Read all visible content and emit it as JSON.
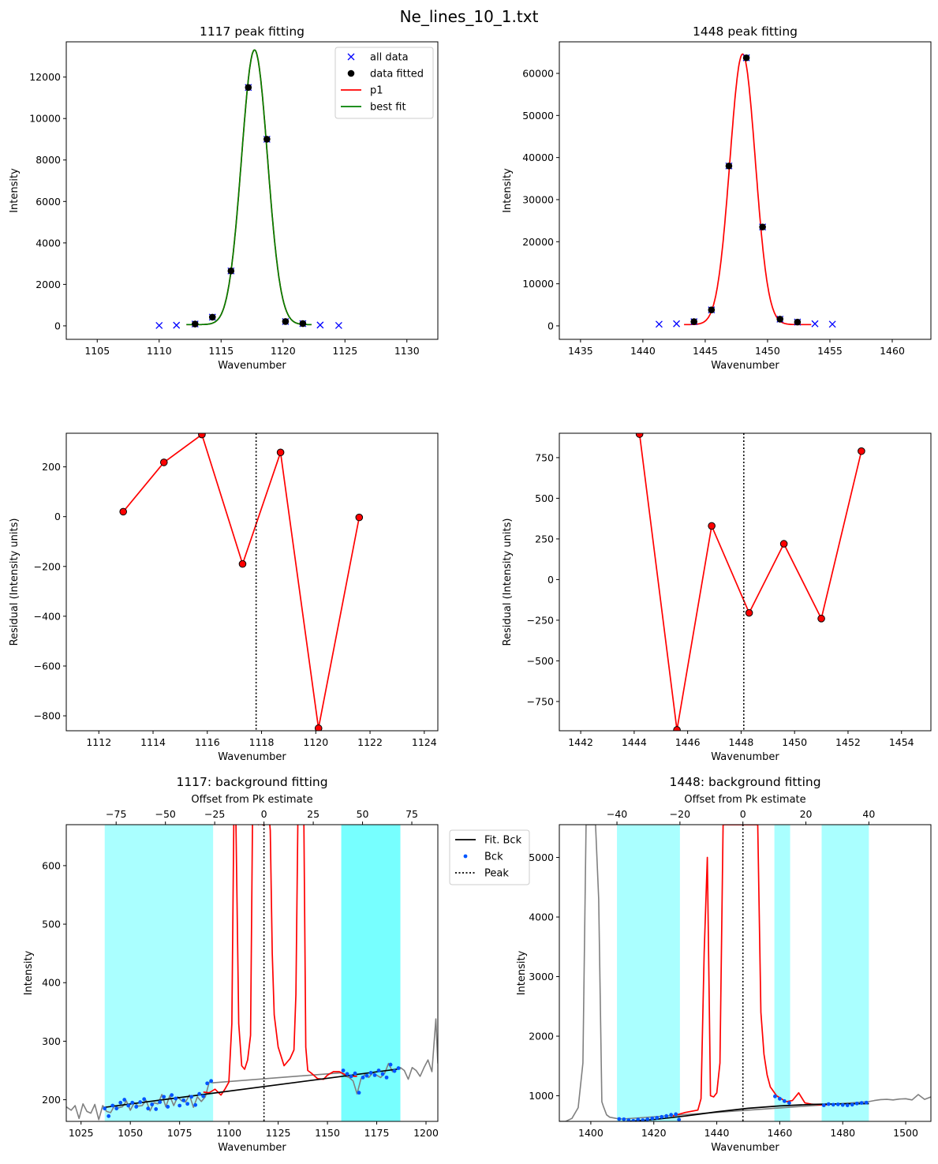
{
  "figure": {
    "title": "Ne_lines_10_1.txt",
    "colors": {
      "peak_red": "#ff0000",
      "fit_green": "#008000",
      "all_data_blue": "#0000ff",
      "bck_blue": "#0055ff",
      "bck_region": "#aaffff",
      "bck_region_strong": "#77ffff",
      "raw_gray": "#808080"
    }
  },
  "chart_data": [
    {
      "id": "p1117",
      "type": "scatter",
      "title": "1117 peak fitting",
      "xlabel": "Wavenumber",
      "ylabel": "Intensity",
      "xlim": [
        1102.5,
        1132.5
      ],
      "ylim": [
        -650,
        13700
      ],
      "xticks": [
        1105,
        1110,
        1115,
        1120,
        1125,
        1130
      ],
      "yticks": [
        0,
        2000,
        4000,
        6000,
        8000,
        10000,
        12000
      ],
      "legend": {
        "position": "top-right",
        "entries": [
          {
            "label": "all data",
            "kind": "x",
            "color": "#0000ff"
          },
          {
            "label": "data fitted",
            "kind": "dot",
            "color": "#000000"
          },
          {
            "label": "p1",
            "kind": "line",
            "color": "#ff0000"
          },
          {
            "label": "best fit",
            "kind": "line",
            "color": "#008000"
          }
        ]
      },
      "series": [
        {
          "name": "all data",
          "kind": "x",
          "color": "#0000ff",
          "x": [
            1110.0,
            1111.4,
            1112.9,
            1114.3,
            1115.8,
            1117.2,
            1118.7,
            1120.2,
            1121.6,
            1123.0,
            1124.5
          ],
          "y": [
            20,
            30,
            90,
            420,
            2650,
            11500,
            9000,
            210,
            110,
            40,
            20
          ]
        },
        {
          "name": "data fitted",
          "kind": "dot",
          "color": "#000000",
          "x": [
            1112.9,
            1114.3,
            1115.8,
            1117.2,
            1118.7,
            1120.2,
            1121.6
          ],
          "y": [
            90,
            420,
            2650,
            11500,
            9000,
            210,
            110
          ]
        }
      ],
      "curves": [
        {
          "name": "p1",
          "color": "#ff0000",
          "amp": 13250,
          "center": 1117.7,
          "sigma": 1.05,
          "base": 60,
          "x_from": 1112.2,
          "x_to": 1122.3
        },
        {
          "name": "best fit",
          "color": "#008000",
          "amp": 13250,
          "center": 1117.7,
          "sigma": 1.05,
          "base": 60,
          "x_from": 1112.2,
          "x_to": 1122.3
        }
      ]
    },
    {
      "id": "p1448",
      "type": "scatter",
      "title": "1448 peak fitting",
      "xlabel": "Wavenumber",
      "ylabel": "Intensity",
      "xlim": [
        1433.3,
        1463.1
      ],
      "ylim": [
        -3200,
        67500
      ],
      "xticks": [
        1435,
        1440,
        1445,
        1450,
        1455,
        1460
      ],
      "yticks": [
        0,
        10000,
        20000,
        30000,
        40000,
        50000,
        60000
      ],
      "series": [
        {
          "name": "all data",
          "kind": "x",
          "color": "#0000ff",
          "x": [
            1441.3,
            1442.7,
            1444.1,
            1445.5,
            1446.9,
            1448.3,
            1449.6,
            1451.0,
            1452.4,
            1453.8,
            1455.2
          ],
          "y": [
            400,
            500,
            1000,
            3800,
            38000,
            63700,
            23500,
            1600,
            900,
            500,
            400
          ]
        },
        {
          "name": "data fitted",
          "kind": "dot",
          "color": "#000000",
          "x": [
            1444.1,
            1445.5,
            1446.9,
            1448.3,
            1449.6,
            1451.0,
            1452.4
          ],
          "y": [
            1000,
            3800,
            38000,
            63700,
            23500,
            1600,
            900
          ]
        }
      ],
      "curves": [
        {
          "name": "p1",
          "color": "#ff0000",
          "amp": 64300,
          "center": 1448.0,
          "sigma": 1.02,
          "base": 300,
          "x_from": 1443.3,
          "x_to": 1453.5
        }
      ]
    },
    {
      "id": "r1117",
      "type": "line",
      "xlabel": "Wavenumber",
      "ylabel": "Residual (Intensity units)",
      "xlim": [
        1110.8,
        1124.5
      ],
      "ylim": [
        -860,
        335
      ],
      "xticks": [
        1112,
        1114,
        1116,
        1118,
        1120,
        1122,
        1124
      ],
      "yticks": [
        -800,
        -600,
        -400,
        -200,
        0,
        200
      ],
      "peak_x": 1117.8,
      "x": [
        1112.9,
        1114.4,
        1115.8,
        1117.3,
        1118.7,
        1120.1,
        1121.6
      ],
      "y": [
        20,
        218,
        330,
        -190,
        258,
        -850,
        -3
      ]
    },
    {
      "id": "r1448",
      "type": "line",
      "xlabel": "Wavenumber",
      "ylabel": "Residual (Intensity units)",
      "xlim": [
        1441.2,
        1455.1
      ],
      "ylim": [
        -930,
        900
      ],
      "xticks": [
        1442,
        1444,
        1446,
        1448,
        1450,
        1452,
        1454
      ],
      "yticks": [
        -750,
        -500,
        -250,
        0,
        250,
        500,
        750
      ],
      "peak_x": 1448.1,
      "x": [
        1444.2,
        1445.6,
        1446.9,
        1448.3,
        1449.6,
        1451.0,
        1452.5
      ],
      "y": [
        895,
        -925,
        330,
        -205,
        220,
        -240,
        790
      ]
    },
    {
      "id": "b1117",
      "type": "line",
      "title": "1117: background fitting",
      "top_xlabel": "Offset from Pk estimate",
      "xlabel": "Wavenumber",
      "ylabel": "Intensity",
      "xlim": [
        1017.5,
        1206
      ],
      "ylim": [
        163,
        670
      ],
      "xticks": [
        1025,
        1050,
        1075,
        1100,
        1125,
        1150,
        1175,
        1200
      ],
      "yticks": [
        200,
        300,
        400,
        500,
        600
      ],
      "peak_x": 1117.8,
      "top_xticks": [
        -75,
        -50,
        -25,
        0,
        25,
        50,
        75
      ],
      "regions": [
        [
          1037,
          1092
        ],
        [
          1157,
          1187
        ]
      ],
      "legend": {
        "position": "outside-right",
        "entries": [
          {
            "label": "Fit. Bck",
            "kind": "line",
            "color": "#000000"
          },
          {
            "label": "Bck",
            "kind": "dot",
            "color": "#0055ff"
          },
          {
            "label": "Peak",
            "kind": "dotted",
            "color": "#000000"
          }
        ]
      },
      "raw": {
        "x": [
          1017.5,
          1020,
          1022,
          1024,
          1026,
          1028,
          1030,
          1032,
          1034,
          1036,
          1038,
          1040,
          1042,
          1044,
          1046,
          1048,
          1050,
          1052,
          1054,
          1056,
          1058,
          1060,
          1062,
          1064,
          1066,
          1068,
          1070,
          1072,
          1074,
          1076,
          1078,
          1080,
          1082,
          1084,
          1086,
          1088,
          1090,
          1092,
          1157,
          1159,
          1161,
          1163,
          1165,
          1167,
          1169,
          1171,
          1173,
          1175,
          1177,
          1179,
          1181,
          1183,
          1185,
          1187,
          1189,
          1191,
          1193,
          1195,
          1197,
          1199,
          1201,
          1203,
          1205,
          1206
        ],
        "y": [
          188,
          182,
          190,
          168,
          193,
          180,
          177,
          192,
          166,
          190,
          180,
          178,
          190,
          186,
          188,
          198,
          182,
          195,
          189,
          190,
          199,
          181,
          195,
          193,
          209,
          188,
          207,
          190,
          205,
          198,
          196,
          208,
          187,
          205,
          197,
          205,
          230,
          229,
          246,
          240,
          238,
          232,
          210,
          236,
          243,
          238,
          246,
          242,
          238,
          245,
          262,
          248,
          252,
          255,
          250,
          235,
          255,
          250,
          240,
          255,
          268,
          248,
          338,
          262
        ]
      },
      "peak_line": {
        "x": [
          1087,
          1090,
          1093,
          1096,
          1098,
          1100,
          1101.5,
          1102.5,
          1103.5,
          1105,
          1106.5,
          1108,
          1109.5,
          1111,
          1112,
          1113,
          1114,
          1115,
          1116,
          1117,
          1118,
          1119,
          1120,
          1121,
          1122,
          1123,
          1125,
          1128,
          1131,
          1133,
          1134,
          1135,
          1136,
          1137,
          1138,
          1139,
          1140,
          1142,
          1145,
          1148,
          1150,
          1153,
          1156,
          1159,
          1162,
          1165
        ],
        "y": [
          213,
          212,
          218,
          208,
          218,
          230,
          330,
          680,
          690,
          330,
          258,
          252,
          268,
          310,
          680,
          690,
          680,
          670,
          675,
          670,
          670,
          690,
          700,
          660,
          450,
          345,
          290,
          258,
          270,
          285,
          380,
          680,
          690,
          680,
          690,
          290,
          250,
          245,
          236,
          235,
          242,
          248,
          248,
          243,
          240,
          240
        ]
      },
      "bck_fit": {
        "x": [
          1037,
          1187
        ],
        "y": [
          187,
          253
        ]
      },
      "bck_points": {
        "x": [
          1037,
          1039,
          1041,
          1043,
          1045,
          1047,
          1049,
          1051,
          1053,
          1055,
          1057,
          1059,
          1061,
          1063,
          1065,
          1067,
          1069,
          1071,
          1073,
          1075,
          1077,
          1079,
          1081,
          1083,
          1085,
          1087,
          1089,
          1091,
          1158,
          1160,
          1162,
          1164,
          1166,
          1168,
          1170,
          1172,
          1174,
          1176,
          1178,
          1180,
          1182,
          1184,
          1186
        ],
        "y": [
          185,
          172,
          190,
          185,
          195,
          200,
          190,
          195,
          188,
          196,
          201,
          185,
          192,
          184,
          196,
          205,
          188,
          208,
          202,
          190,
          199,
          193,
          205,
          191,
          210,
          206,
          228,
          232,
          250,
          244,
          240,
          245,
          212,
          238,
          241,
          246,
          242,
          250,
          244,
          238,
          260,
          249,
          254
        ]
      }
    },
    {
      "id": "b1448",
      "type": "line",
      "title": "1448: background fitting",
      "top_xlabel": "Offset from Pk estimate",
      "xlabel": "Wavenumber",
      "ylabel": "Intensity",
      "xlim": [
        1390,
        1508
      ],
      "ylim": [
        570,
        5550
      ],
      "xticks": [
        1400,
        1420,
        1440,
        1460,
        1480,
        1500
      ],
      "yticks": [
        1000,
        2000,
        3000,
        4000,
        5000
      ],
      "peak_x": 1448.3,
      "top_xticks": [
        -40,
        -20,
        0,
        20,
        40
      ],
      "regions": [
        [
          1408.3,
          1428.3
        ],
        [
          1458.3,
          1463.3
        ],
        [
          1473.3,
          1488.3
        ]
      ],
      "raw": {
        "x": [
          1390,
          1392,
          1394,
          1396,
          1397.5,
          1398.5,
          1399.5,
          1400.5,
          1401.5,
          1402.5,
          1403.5,
          1404,
          1405,
          1406,
          1408,
          1410,
          1488,
          1490,
          1492,
          1494,
          1496,
          1498,
          1500,
          1502,
          1504,
          1506,
          1508
        ],
        "y": [
          570,
          570,
          620,
          800,
          1550,
          5550,
          5550,
          5550,
          5550,
          4300,
          900,
          820,
          680,
          640,
          620,
          610,
          900,
          920,
          935,
          940,
          930,
          945,
          950,
          930,
          1020,
          940,
          980
        ]
      },
      "peak_line": {
        "x": [
          1426,
          1428,
          1430,
          1432,
          1434,
          1435,
          1436,
          1437,
          1438,
          1439,
          1440,
          1441,
          1442,
          1443,
          1444,
          1445,
          1446,
          1447,
          1448,
          1449,
          1450,
          1451,
          1452,
          1453,
          1454,
          1455,
          1456,
          1457,
          1459,
          1462,
          1464,
          1466,
          1468,
          1470,
          1473,
          1475
        ],
        "y": [
          660,
          690,
          720,
          740,
          760,
          950,
          3400,
          5000,
          1000,
          980,
          1050,
          1550,
          5550,
          5550,
          5550,
          5550,
          5550,
          5550,
          5550,
          5550,
          5550,
          5550,
          5550,
          5550,
          2400,
          1700,
          1350,
          1150,
          1000,
          900,
          920,
          1050,
          880,
          860,
          845,
          850
        ]
      },
      "bck_fit": {
        "x": [
          1408.3,
          1420,
          1430,
          1440,
          1450,
          1460,
          1470,
          1480,
          1488.3
        ],
        "y": [
          555,
          600,
          660,
          730,
          790,
          830,
          855,
          865,
          868
        ]
      },
      "bck_points": {
        "x": [
          1409,
          1410.5,
          1412,
          1413.5,
          1415,
          1416.5,
          1418,
          1419.5,
          1421,
          1422.5,
          1424,
          1425.5,
          1427,
          1428,
          1458.5,
          1460,
          1461.5,
          1463,
          1474,
          1475.5,
          1477,
          1478.5,
          1480,
          1481.5,
          1483,
          1484.5,
          1486,
          1487.5
        ],
        "y": [
          610,
          605,
          590,
          580,
          600,
          590,
          605,
          620,
          630,
          645,
          660,
          680,
          690,
          600,
          990,
          950,
          910,
          880,
          840,
          860,
          850,
          855,
          845,
          840,
          850,
          870,
          880,
          885
        ]
      }
    }
  ]
}
